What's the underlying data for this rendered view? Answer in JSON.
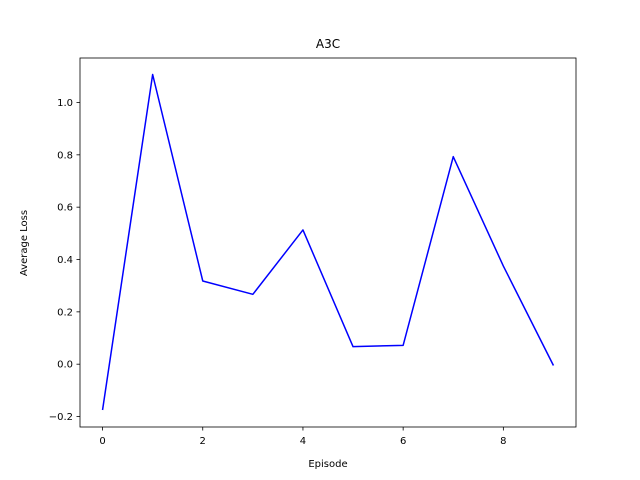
{
  "chart_data": {
    "type": "line",
    "title": "A3C",
    "xlabel": "Episode",
    "ylabel": "Average Loss",
    "x": [
      0,
      1,
      2,
      3,
      4,
      5,
      6,
      7,
      8,
      9
    ],
    "series": [
      {
        "values": [
          -0.175,
          1.107,
          0.318,
          0.267,
          0.513,
          0.067,
          0.072,
          0.793,
          0.375,
          -0.005
        ],
        "color": "#0000ff"
      }
    ],
    "xlim": [
      -0.45,
      9.45
    ],
    "ylim": [
      -0.24,
      1.17
    ],
    "xticks": [
      0,
      2,
      4,
      6,
      8
    ],
    "xtick_labels": [
      "0",
      "2",
      "4",
      "6",
      "8"
    ],
    "yticks": [
      -0.2,
      0.0,
      0.2,
      0.4,
      0.6,
      0.8,
      1.0
    ],
    "ytick_labels": [
      "−0.2",
      "0.0",
      "0.2",
      "0.4",
      "0.6",
      "0.8",
      "1.0"
    ],
    "grid": false,
    "legend": false
  }
}
